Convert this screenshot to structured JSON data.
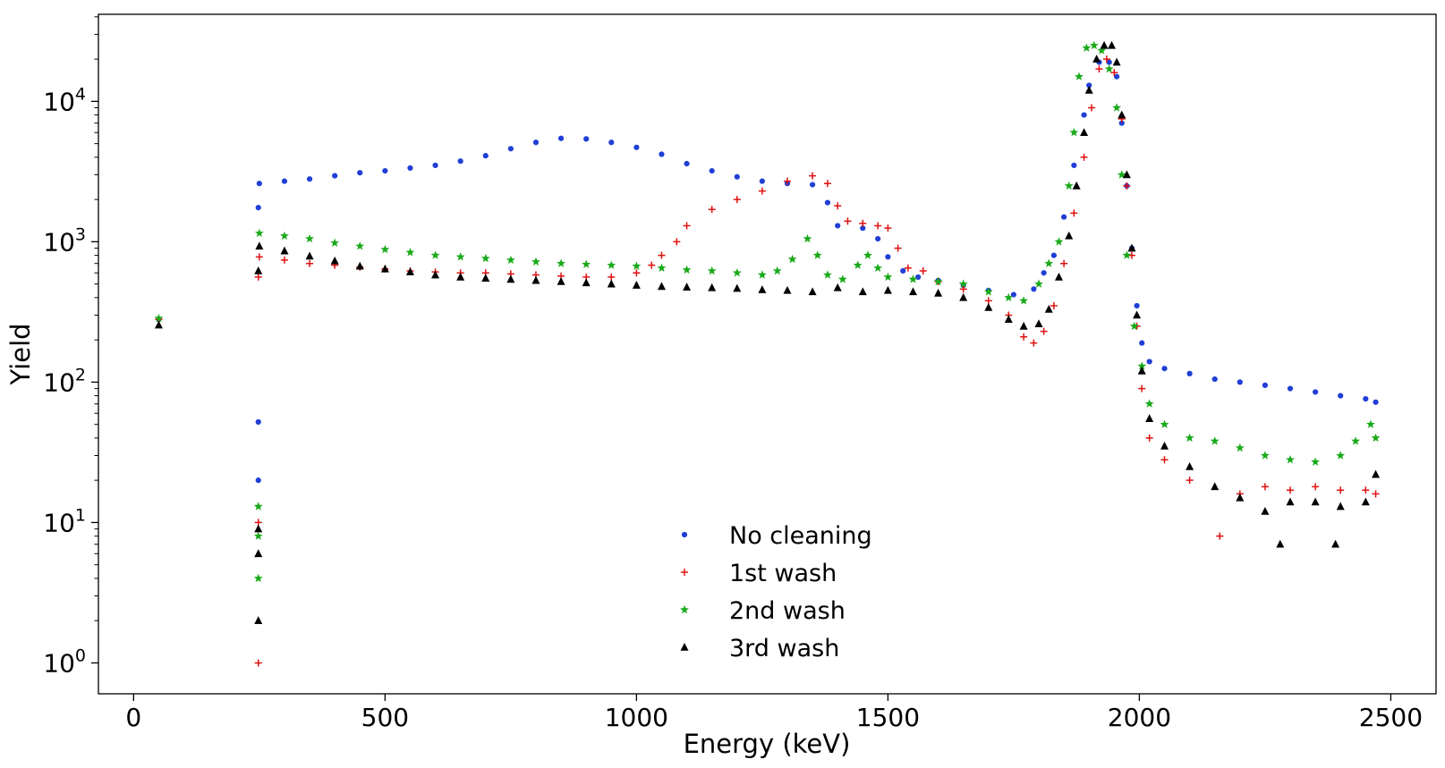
{
  "chart_data": {
    "type": "scatter",
    "title": "",
    "xlabel": "Energy (keV)",
    "ylabel": "Yield",
    "xlim": [
      -70,
      2590
    ],
    "ylim_log10": [
      -0.22,
      4.62
    ],
    "yscale": "log",
    "grid": false,
    "legend_placement": "bottom-center",
    "x_ticks": [
      0,
      500,
      1000,
      1500,
      2000,
      2500
    ],
    "x_tick_labels": [
      "0",
      "500",
      "1000",
      "1500",
      "2000",
      "2500"
    ],
    "y_ticks": [
      1,
      10,
      100,
      1000,
      10000
    ],
    "y_tick_labels": [
      {
        "base": "10",
        "exp": "0"
      },
      {
        "base": "10",
        "exp": "1"
      },
      {
        "base": "10",
        "exp": "2"
      },
      {
        "base": "10",
        "exp": "3"
      },
      {
        "base": "10",
        "exp": "4"
      }
    ],
    "series": [
      {
        "name": "No cleaning",
        "marker": "dot",
        "color": "#1f3fd6",
        "points": [
          [
            50,
            280
          ],
          [
            248,
            1750
          ],
          [
            248,
            52
          ],
          [
            248,
            20
          ],
          [
            250,
            2600
          ],
          [
            300,
            2700
          ],
          [
            350,
            2800
          ],
          [
            400,
            2950
          ],
          [
            450,
            3100
          ],
          [
            500,
            3200
          ],
          [
            550,
            3350
          ],
          [
            600,
            3500
          ],
          [
            650,
            3750
          ],
          [
            700,
            4100
          ],
          [
            750,
            4600
          ],
          [
            800,
            5100
          ],
          [
            850,
            5450
          ],
          [
            900,
            5400
          ],
          [
            950,
            5100
          ],
          [
            1000,
            4700
          ],
          [
            1050,
            4200
          ],
          [
            1100,
            3600
          ],
          [
            1150,
            3200
          ],
          [
            1200,
            2900
          ],
          [
            1250,
            2700
          ],
          [
            1300,
            2600
          ],
          [
            1350,
            2550
          ],
          [
            1380,
            1900
          ],
          [
            1400,
            1300
          ],
          [
            1450,
            1250
          ],
          [
            1480,
            1050
          ],
          [
            1500,
            780
          ],
          [
            1530,
            620
          ],
          [
            1560,
            560
          ],
          [
            1600,
            530
          ],
          [
            1650,
            490
          ],
          [
            1700,
            450
          ],
          [
            1750,
            420
          ],
          [
            1790,
            460
          ],
          [
            1810,
            600
          ],
          [
            1830,
            800
          ],
          [
            1850,
            1500
          ],
          [
            1870,
            3500
          ],
          [
            1890,
            8000
          ],
          [
            1900,
            13000
          ],
          [
            1920,
            19000
          ],
          [
            1940,
            19000
          ],
          [
            1955,
            15000
          ],
          [
            1965,
            7000
          ],
          [
            1975,
            2500
          ],
          [
            1985,
            900
          ],
          [
            1995,
            350
          ],
          [
            2005,
            190
          ],
          [
            2020,
            140
          ],
          [
            2050,
            125
          ],
          [
            2100,
            115
          ],
          [
            2150,
            105
          ],
          [
            2200,
            100
          ],
          [
            2250,
            95
          ],
          [
            2300,
            90
          ],
          [
            2350,
            85
          ],
          [
            2400,
            80
          ],
          [
            2450,
            76
          ],
          [
            2470,
            72
          ]
        ]
      },
      {
        "name": "1st wash",
        "marker": "plus",
        "color": "#e01010",
        "points": [
          [
            50,
            280
          ],
          [
            248,
            10
          ],
          [
            248,
            1
          ],
          [
            248,
            560
          ],
          [
            250,
            780
          ],
          [
            300,
            740
          ],
          [
            350,
            700
          ],
          [
            400,
            680
          ],
          [
            450,
            660
          ],
          [
            500,
            640
          ],
          [
            550,
            620
          ],
          [
            600,
            610
          ],
          [
            650,
            600
          ],
          [
            700,
            600
          ],
          [
            750,
            590
          ],
          [
            800,
            580
          ],
          [
            850,
            570
          ],
          [
            900,
            560
          ],
          [
            950,
            560
          ],
          [
            1000,
            600
          ],
          [
            1030,
            680
          ],
          [
            1050,
            800
          ],
          [
            1080,
            1000
          ],
          [
            1100,
            1300
          ],
          [
            1150,
            1700
          ],
          [
            1200,
            2000
          ],
          [
            1250,
            2300
          ],
          [
            1300,
            2700
          ],
          [
            1350,
            2950
          ],
          [
            1380,
            2600
          ],
          [
            1400,
            1800
          ],
          [
            1420,
            1400
          ],
          [
            1450,
            1350
          ],
          [
            1480,
            1300
          ],
          [
            1500,
            1250
          ],
          [
            1520,
            900
          ],
          [
            1540,
            650
          ],
          [
            1570,
            620
          ],
          [
            1600,
            520
          ],
          [
            1650,
            460
          ],
          [
            1700,
            380
          ],
          [
            1740,
            300
          ],
          [
            1770,
            210
          ],
          [
            1790,
            190
          ],
          [
            1810,
            230
          ],
          [
            1830,
            350
          ],
          [
            1850,
            700
          ],
          [
            1870,
            1600
          ],
          [
            1890,
            4000
          ],
          [
            1905,
            9000
          ],
          [
            1920,
            17000
          ],
          [
            1935,
            20000
          ],
          [
            1950,
            16000
          ],
          [
            1965,
            7500
          ],
          [
            1975,
            2500
          ],
          [
            1985,
            800
          ],
          [
            1995,
            250
          ],
          [
            2005,
            90
          ],
          [
            2020,
            40
          ],
          [
            2050,
            28
          ],
          [
            2100,
            20
          ],
          [
            2160,
            8
          ],
          [
            2200,
            16
          ],
          [
            2250,
            18
          ],
          [
            2300,
            17
          ],
          [
            2350,
            18
          ],
          [
            2400,
            17
          ],
          [
            2450,
            17
          ],
          [
            2470,
            16
          ]
        ]
      },
      {
        "name": "2nd wash",
        "marker": "star",
        "color": "#1aaa1a",
        "points": [
          [
            50,
            285
          ],
          [
            248,
            13
          ],
          [
            248,
            8
          ],
          [
            248,
            4
          ],
          [
            250,
            1150
          ],
          [
            300,
            1100
          ],
          [
            350,
            1050
          ],
          [
            400,
            980
          ],
          [
            450,
            930
          ],
          [
            500,
            880
          ],
          [
            550,
            840
          ],
          [
            600,
            800
          ],
          [
            650,
            780
          ],
          [
            700,
            760
          ],
          [
            750,
            740
          ],
          [
            800,
            720
          ],
          [
            850,
            700
          ],
          [
            900,
            690
          ],
          [
            950,
            680
          ],
          [
            1000,
            670
          ],
          [
            1050,
            650
          ],
          [
            1100,
            630
          ],
          [
            1150,
            620
          ],
          [
            1200,
            600
          ],
          [
            1250,
            580
          ],
          [
            1280,
            620
          ],
          [
            1310,
            750
          ],
          [
            1340,
            1050
          ],
          [
            1360,
            800
          ],
          [
            1380,
            580
          ],
          [
            1410,
            540
          ],
          [
            1440,
            680
          ],
          [
            1460,
            800
          ],
          [
            1480,
            650
          ],
          [
            1500,
            560
          ],
          [
            1550,
            540
          ],
          [
            1600,
            520
          ],
          [
            1650,
            500
          ],
          [
            1700,
            440
          ],
          [
            1740,
            400
          ],
          [
            1770,
            380
          ],
          [
            1800,
            500
          ],
          [
            1820,
            700
          ],
          [
            1840,
            1000
          ],
          [
            1860,
            2500
          ],
          [
            1870,
            6000
          ],
          [
            1880,
            15000
          ],
          [
            1895,
            24000
          ],
          [
            1910,
            25000
          ],
          [
            1925,
            23000
          ],
          [
            1940,
            17000
          ],
          [
            1955,
            9000
          ],
          [
            1965,
            3000
          ],
          [
            1975,
            800
          ],
          [
            1990,
            250
          ],
          [
            2005,
            130
          ],
          [
            2020,
            70
          ],
          [
            2050,
            50
          ],
          [
            2100,
            40
          ],
          [
            2150,
            38
          ],
          [
            2200,
            34
          ],
          [
            2250,
            30
          ],
          [
            2300,
            28
          ],
          [
            2350,
            27
          ],
          [
            2400,
            30
          ],
          [
            2430,
            38
          ],
          [
            2460,
            50
          ],
          [
            2470,
            40
          ]
        ]
      },
      {
        "name": "3rd wash",
        "marker": "triangle",
        "color": "#000000",
        "points": [
          [
            50,
            255
          ],
          [
            248,
            9
          ],
          [
            248,
            6
          ],
          [
            248,
            2
          ],
          [
            248,
            620
          ],
          [
            250,
            930
          ],
          [
            300,
            860
          ],
          [
            350,
            790
          ],
          [
            400,
            730
          ],
          [
            450,
            670
          ],
          [
            500,
            640
          ],
          [
            550,
            610
          ],
          [
            600,
            580
          ],
          [
            650,
            560
          ],
          [
            700,
            550
          ],
          [
            750,
            540
          ],
          [
            800,
            530
          ],
          [
            850,
            520
          ],
          [
            900,
            510
          ],
          [
            950,
            500
          ],
          [
            1000,
            490
          ],
          [
            1050,
            480
          ],
          [
            1100,
            475
          ],
          [
            1150,
            470
          ],
          [
            1200,
            465
          ],
          [
            1250,
            455
          ],
          [
            1300,
            450
          ],
          [
            1350,
            440
          ],
          [
            1400,
            470
          ],
          [
            1450,
            440
          ],
          [
            1500,
            450
          ],
          [
            1550,
            440
          ],
          [
            1600,
            430
          ],
          [
            1650,
            400
          ],
          [
            1700,
            340
          ],
          [
            1740,
            280
          ],
          [
            1770,
            250
          ],
          [
            1800,
            260
          ],
          [
            1820,
            330
          ],
          [
            1840,
            560
          ],
          [
            1860,
            1100
          ],
          [
            1875,
            2500
          ],
          [
            1890,
            6000
          ],
          [
            1900,
            12000
          ],
          [
            1915,
            20000
          ],
          [
            1930,
            25000
          ],
          [
            1945,
            25000
          ],
          [
            1955,
            19000
          ],
          [
            1965,
            8000
          ],
          [
            1975,
            3000
          ],
          [
            1985,
            900
          ],
          [
            1995,
            300
          ],
          [
            2005,
            120
          ],
          [
            2020,
            55
          ],
          [
            2050,
            35
          ],
          [
            2100,
            25
          ],
          [
            2150,
            18
          ],
          [
            2200,
            15
          ],
          [
            2250,
            12
          ],
          [
            2280,
            7
          ],
          [
            2300,
            14
          ],
          [
            2350,
            14
          ],
          [
            2390,
            7
          ],
          [
            2400,
            13
          ],
          [
            2450,
            14
          ],
          [
            2470,
            22
          ]
        ]
      }
    ]
  }
}
